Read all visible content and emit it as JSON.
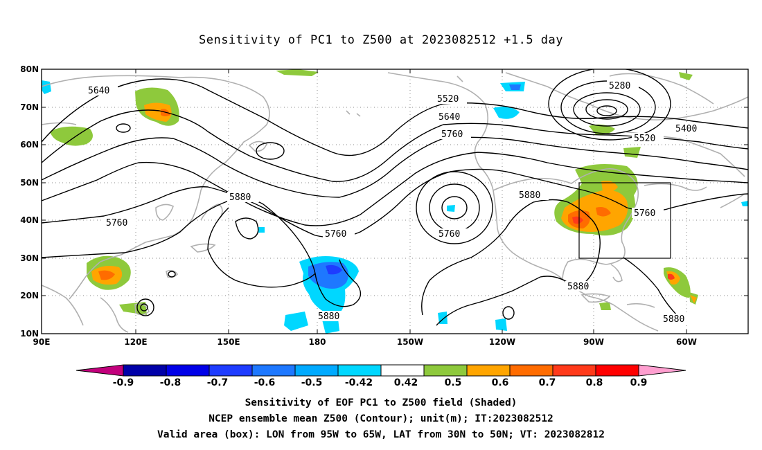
{
  "title": "Sensitivity of PC1 to Z500 at 2023082512 +1.5 day",
  "map": {
    "lat_labels": [
      "80N",
      "70N",
      "60N",
      "50N",
      "40N",
      "30N",
      "20N",
      "10N"
    ],
    "lon_labels": [
      "90E",
      "120E",
      "150E",
      "180",
      "150W",
      "120W",
      "90W",
      "60W"
    ],
    "contour_labels": [
      "5640",
      "5520",
      "5640",
      "5760",
      "5280",
      "5400",
      "5520",
      "5880",
      "5760",
      "5760",
      "5760",
      "5880",
      "5760",
      "5880",
      "5880",
      "5880"
    ],
    "box": {
      "lon_west": "95W",
      "lon_east": "65W",
      "lat_south": "30N",
      "lat_north": "50N"
    }
  },
  "colorbar": {
    "labels": [
      "-0.9",
      "-0.8",
      "-0.7",
      "-0.6",
      "-0.5",
      "-0.42",
      "0.42",
      "0.5",
      "0.6",
      "0.7",
      "0.8",
      "0.9"
    ],
    "colors": [
      "#c2007c",
      "#0000a8",
      "#0000e8",
      "#1e3cff",
      "#1e78ff",
      "#00aaff",
      "#00d7ff",
      "#ffffff",
      "#8ec93c",
      "#ffa500",
      "#ff6c00",
      "#ff3a1a",
      "#ff0000",
      "#ff9fd0"
    ]
  },
  "captions": {
    "line1": "Sensitivity of EOF PC1 to Z500 field (Shaded)",
    "line2": "NCEP ensemble mean Z500 (Contour); unit(m); IT:2023082512",
    "line3": "Valid area (box): LON from 95W to 65W, LAT from 30N to 50N; VT: 2023082812"
  }
}
